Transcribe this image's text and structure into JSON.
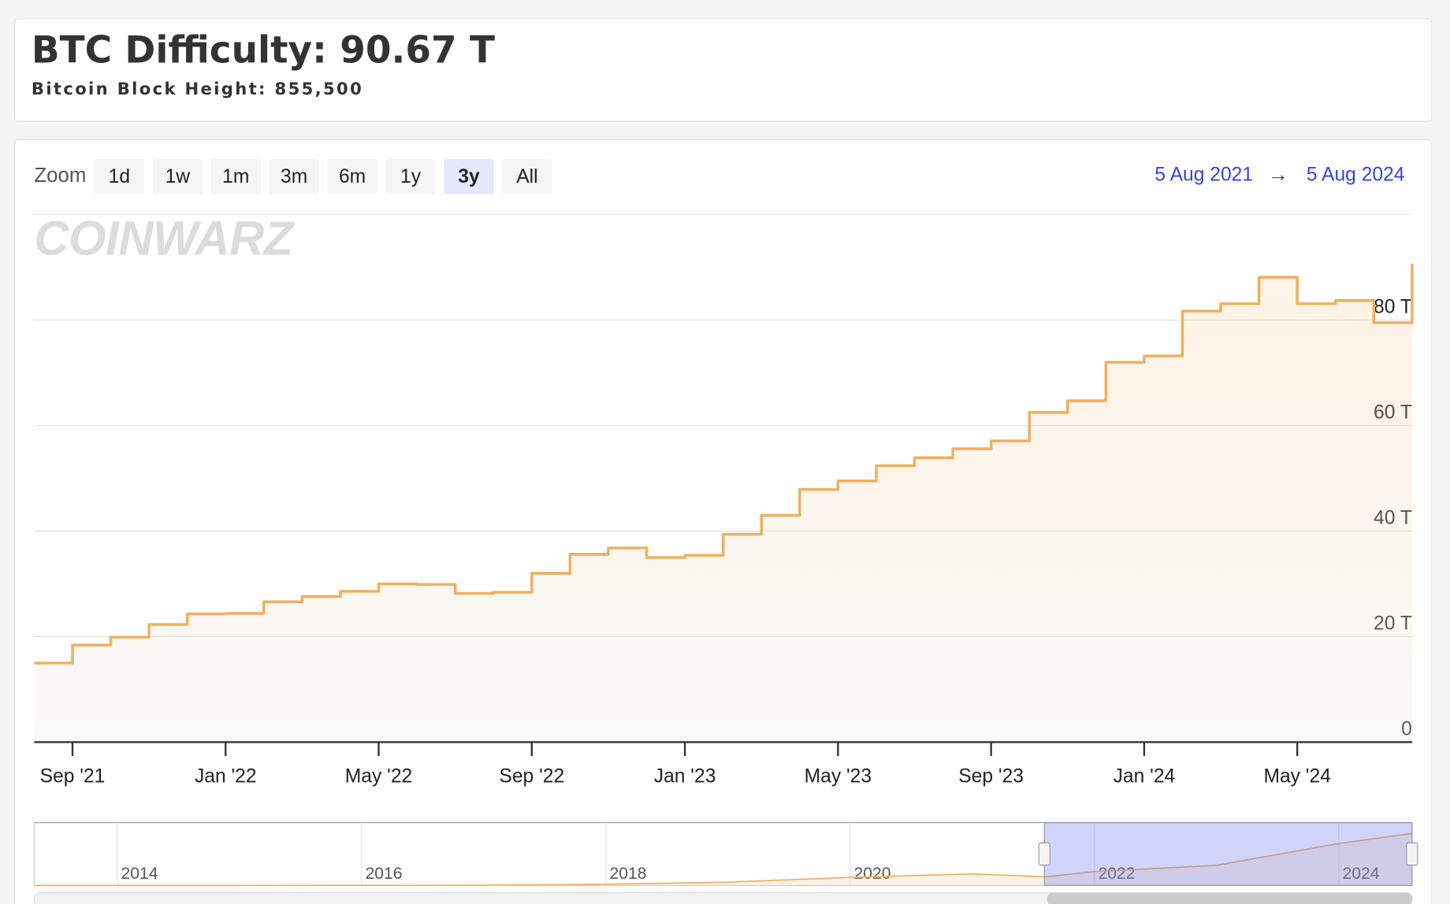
{
  "header": {
    "title": "BTC Difficulty: 90.67 T",
    "subtitle": "Bitcoin Block Height: 855,500"
  },
  "zoom": {
    "label": "Zoom",
    "buttons": [
      "1d",
      "1w",
      "1m",
      "3m",
      "6m",
      "1y",
      "3y",
      "All"
    ],
    "selected": 6
  },
  "range": {
    "start": "5 Aug 2021",
    "separator": "→",
    "end": "5 Aug 2024"
  },
  "watermark": "COINWARZ",
  "chart_data": {
    "type": "line",
    "step": true,
    "x": [
      "2021-08",
      "2021-09",
      "2021-10",
      "2021-11",
      "2021-12",
      "2022-01",
      "2022-02",
      "2022-03",
      "2022-04",
      "2022-05",
      "2022-06",
      "2022-07",
      "2022-08",
      "2022-09",
      "2022-10",
      "2022-11",
      "2022-12",
      "2023-01",
      "2023-02",
      "2023-03",
      "2023-04",
      "2023-05",
      "2023-06",
      "2023-07",
      "2023-08",
      "2023-09",
      "2023-10",
      "2023-11",
      "2023-12",
      "2024-01",
      "2024-02",
      "2024-03",
      "2024-04",
      "2024-05",
      "2024-06",
      "2024-07",
      "2024-08"
    ],
    "series": [
      {
        "name": "Difficulty",
        "color": "#f0b060",
        "values": [
          15.0,
          18.4,
          19.9,
          22.3,
          24.3,
          24.4,
          26.6,
          27.6,
          28.6,
          30.0,
          29.9,
          28.2,
          28.4,
          32.0,
          35.6,
          36.8,
          35.0,
          35.4,
          39.4,
          43.0,
          47.9,
          49.5,
          52.4,
          53.9,
          55.6,
          57.1,
          62.5,
          64.7,
          72.0,
          73.2,
          81.7,
          83.1,
          88.1,
          83.1,
          83.7,
          79.5,
          90.67
        ]
      }
    ],
    "xlim": [
      "2021-08",
      "2024-08"
    ],
    "xticks": [
      {
        "value": "2021-09",
        "label": "Sep '21"
      },
      {
        "value": "2022-01",
        "label": "Jan '22"
      },
      {
        "value": "2022-05",
        "label": "May '22"
      },
      {
        "value": "2022-09",
        "label": "Sep '22"
      },
      {
        "value": "2023-01",
        "label": "Jan '23"
      },
      {
        "value": "2023-05",
        "label": "May '23"
      },
      {
        "value": "2023-09",
        "label": "Sep '23"
      },
      {
        "value": "2024-01",
        "label": "Jan '24"
      },
      {
        "value": "2024-05",
        "label": "May '24"
      }
    ],
    "ylim": [
      0,
      100
    ],
    "yticks": [
      0,
      {
        "value": 20,
        "label": "20 T"
      },
      {
        "value": 40,
        "label": "40 T"
      },
      {
        "value": 60,
        "label": "60 T"
      },
      {
        "value": 80,
        "label": "80 T"
      }
    ],
    "grid": true,
    "navigator": {
      "x": [
        2013.32,
        2014,
        2015,
        2016,
        2017,
        2018,
        2019,
        2020,
        2021,
        2021.6,
        2022,
        2023,
        2024,
        2024.6
      ],
      "values": [
        0.0004,
        0.001,
        0.04,
        0.1,
        0.3,
        2,
        5.6,
        13.9,
        20,
        15,
        24,
        35,
        73,
        90.67
      ],
      "xlim": [
        2013.32,
        2024.6
      ],
      "ylim": [
        0,
        100
      ],
      "xticks": [
        2014,
        2016,
        2018,
        2020,
        2022,
        2024
      ],
      "selection": [
        2021.59,
        2024.6
      ]
    }
  }
}
